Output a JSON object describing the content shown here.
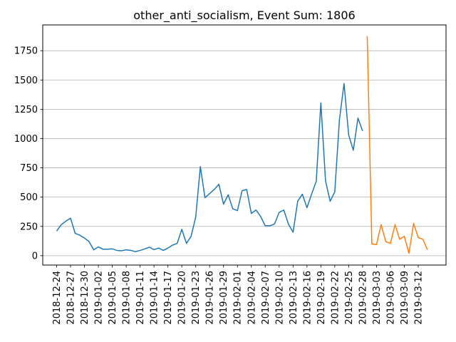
{
  "chart_data": {
    "type": "line",
    "title": "other_anti_socialism, Event Sum: 1806",
    "xlabel": "",
    "ylabel": "",
    "x_tick_labels": [
      "2018-12-24",
      "2018-12-27",
      "2018-12-30",
      "2019-01-02",
      "2019-01-05",
      "2019-01-08",
      "2019-01-11",
      "2019-01-14",
      "2019-01-17",
      "2019-01-20",
      "2019-01-23",
      "2019-01-26",
      "2019-01-29",
      "2019-02-01",
      "2019-02-04",
      "2019-02-07",
      "2019-02-10",
      "2019-02-13",
      "2019-02-16",
      "2019-02-19",
      "2019-02-22",
      "2019-02-25",
      "2019-02-28",
      "2019-03-03",
      "2019-03-06",
      "2019-03-09",
      "2019-03-12"
    ],
    "y_ticks": [
      0,
      250,
      500,
      750,
      1000,
      1250,
      1500,
      1750
    ],
    "xlim": [
      "2018-12-21",
      "2019-03-18"
    ],
    "ylim": [
      -80,
      1970
    ],
    "grid": "y",
    "series": [
      {
        "color": "#1f77b4",
        "start_date": "2018-12-24",
        "values": [
          210,
          265,
          295,
          320,
          190,
          175,
          150,
          120,
          50,
          75,
          55,
          55,
          58,
          45,
          42,
          50,
          45,
          35,
          45,
          58,
          72,
          52,
          65,
          45,
          65,
          90,
          105,
          225,
          105,
          165,
          330,
          760,
          495,
          530,
          565,
          610,
          440,
          520,
          400,
          385,
          555,
          565,
          360,
          390,
          335,
          255,
          255,
          270,
          370,
          390,
          270,
          200,
          465,
          525,
          410,
          525,
          635,
          1305,
          640,
          465,
          545,
          1160,
          1470,
          1030,
          900,
          1175,
          1065
        ]
      },
      {
        "color": "#ff7f0e",
        "start_date": "2019-03-01",
        "values": [
          1875,
          100,
          95,
          265,
          120,
          105,
          265,
          140,
          165,
          20,
          275,
          155,
          140,
          50
        ]
      }
    ]
  }
}
